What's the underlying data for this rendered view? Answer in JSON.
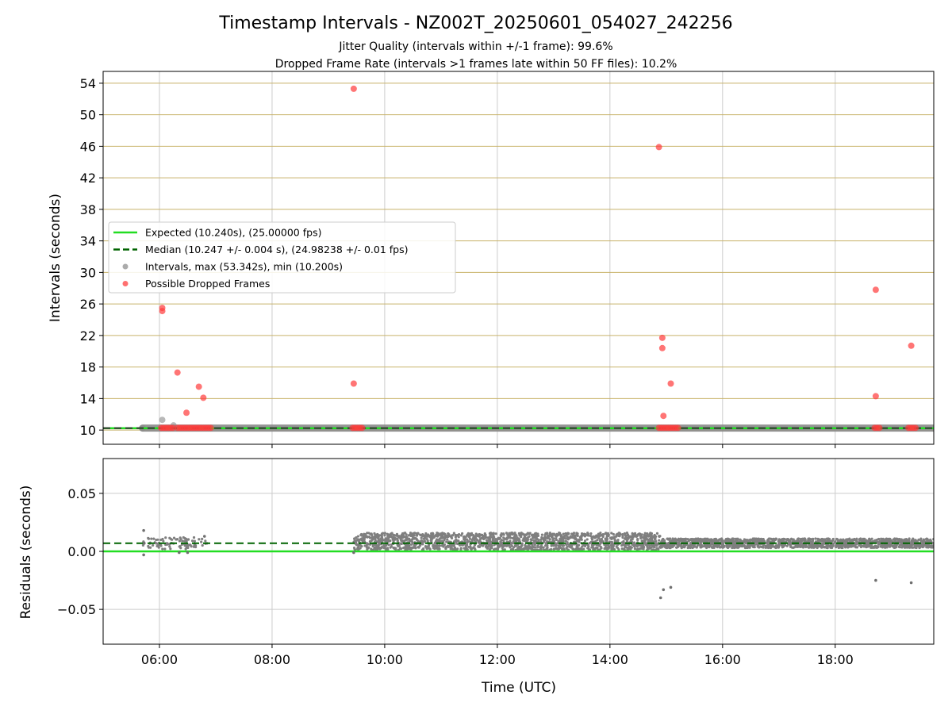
{
  "chart_data": [
    {
      "type": "scatter",
      "title": "Timestamp Intervals - NZ002T_20250601_054027_242256",
      "subtitle_lines": [
        "Jitter Quality (intervals within +/-1 frame): 99.6%",
        "Dropped Frame Rate (intervals >1 frames late within 50 FF files): 10.2%"
      ],
      "ylabel": "Intervals (seconds)",
      "xlabel": "",
      "x_unit": "hours UTC",
      "xlim": [
        5.0,
        19.75
      ],
      "ylim": [
        8.2,
        55.5
      ],
      "y_ticks": [
        10,
        14,
        18,
        22,
        26,
        30,
        34,
        38,
        42,
        46,
        50,
        54
      ],
      "y_grid_color": "#c8b26a",
      "x_grid": true,
      "expected_value": 10.24,
      "median_value": 10.247,
      "legend_position": "center-left",
      "legend": [
        {
          "label": "Expected (10.240s), (25.00000 fps)",
          "marker": "solid-line",
          "color": "#22dd22"
        },
        {
          "label": "Median (10.247 +/- 0.004 s), (24.98238 +/- 0.01 fps)",
          "marker": "dashed-line",
          "color": "#006400"
        },
        {
          "label": "Intervals, max (53.342s), min (10.200s)",
          "marker": "dot",
          "color": "#888888"
        },
        {
          "label": "Possible Dropped Frames",
          "marker": "dot",
          "color": "#ff3333"
        }
      ],
      "interval_baseline_segments": [
        [
          5.7,
          19.75
        ]
      ],
      "interval_points": [
        {
          "x": 6.05,
          "y": 11.3
        },
        {
          "x": 6.25,
          "y": 10.6
        },
        {
          "x": 5.7,
          "y": 10.25
        }
      ],
      "dropped_frame_clusters": [
        [
          6.03,
          6.25
        ],
        [
          6.32,
          6.92
        ],
        [
          9.43,
          9.6
        ],
        [
          14.87,
          15.22
        ],
        [
          18.7,
          18.82
        ],
        [
          19.3,
          19.45
        ]
      ],
      "dropped_frame_points": [
        {
          "x": 6.05,
          "y": 25.5
        },
        {
          "x": 6.05,
          "y": 25.1
        },
        {
          "x": 6.32,
          "y": 17.3
        },
        {
          "x": 6.48,
          "y": 12.2
        },
        {
          "x": 6.7,
          "y": 15.5
        },
        {
          "x": 6.78,
          "y": 14.1
        },
        {
          "x": 9.45,
          "y": 53.3
        },
        {
          "x": 9.45,
          "y": 15.9
        },
        {
          "x": 14.87,
          "y": 45.9
        },
        {
          "x": 14.93,
          "y": 21.7
        },
        {
          "x": 14.93,
          "y": 20.4
        },
        {
          "x": 14.95,
          "y": 11.8
        },
        {
          "x": 15.08,
          "y": 15.9
        },
        {
          "x": 18.72,
          "y": 27.8
        },
        {
          "x": 18.72,
          "y": 14.3
        },
        {
          "x": 19.35,
          "y": 20.7
        }
      ]
    },
    {
      "type": "scatter",
      "ylabel": "Residuals (seconds)",
      "xlabel": "Time (UTC)",
      "x_unit": "hours UTC",
      "xlim": [
        5.0,
        19.75
      ],
      "ylim": [
        -0.08,
        0.08
      ],
      "y_ticks": [
        0.05,
        0.0,
        -0.05
      ],
      "y_tick_labels": [
        "0.05",
        "0.00",
        "−0.05"
      ],
      "x_ticks": [
        6,
        8,
        10,
        12,
        14,
        16,
        18
      ],
      "x_tick_labels": [
        "06:00",
        "08:00",
        "10:00",
        "12:00",
        "14:00",
        "16:00",
        "18:00"
      ],
      "grid": true,
      "expected_residual": 0.0,
      "median_residual": 0.007,
      "residual_bands": [
        {
          "x_range": [
            5.7,
            6.85
          ],
          "y_range": [
            0.002,
            0.012
          ]
        },
        {
          "x_range": [
            9.45,
            14.9
          ],
          "y_range": [
            0.001,
            0.016
          ]
        },
        {
          "x_range": [
            14.9,
            19.75
          ],
          "y_range": [
            0.003,
            0.011
          ]
        }
      ],
      "residual_points": [
        {
          "x": 5.72,
          "y": 0.018
        },
        {
          "x": 5.72,
          "y": -0.003
        },
        {
          "x": 5.73,
          "y": 0.007
        },
        {
          "x": 6.35,
          "y": -0.001
        },
        {
          "x": 6.5,
          "y": -0.001
        },
        {
          "x": 6.8,
          "y": 0.013
        },
        {
          "x": 9.45,
          "y": -0.001
        },
        {
          "x": 14.9,
          "y": -0.04
        },
        {
          "x": 14.95,
          "y": -0.033
        },
        {
          "x": 15.08,
          "y": -0.031
        },
        {
          "x": 18.72,
          "y": -0.025
        },
        {
          "x": 19.35,
          "y": -0.027
        }
      ]
    }
  ]
}
